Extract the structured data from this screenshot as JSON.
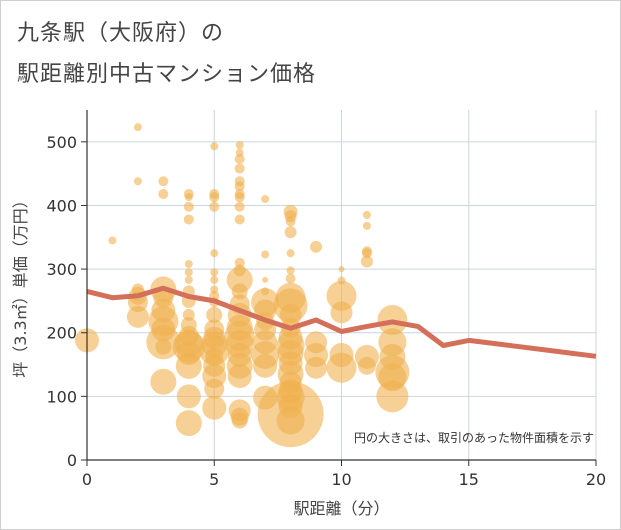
{
  "title_line1": "九条駅（大阪府）の",
  "title_line2": "駅距離別中古マンション価格",
  "chart_data": {
    "type": "scatter",
    "xlabel": "駅距離（分）",
    "ylabel": "坪（3.3㎡）単価（万円）",
    "xlim": [
      0,
      20
    ],
    "ylim": [
      0,
      550
    ],
    "xticks": [
      0,
      5,
      10,
      15,
      20
    ],
    "yticks": [
      0,
      100,
      200,
      300,
      400,
      500
    ],
    "note": "円の大きさは、取引のあった物件面積を示す",
    "grid": true,
    "colors": {
      "bubble": "#f0b14f",
      "line": "#d4705a",
      "grid": "#cad6e0"
    },
    "bubbles": [
      [
        0,
        188,
        12
      ],
      [
        1,
        345,
        4
      ],
      [
        2,
        523,
        4
      ],
      [
        2,
        438,
        4
      ],
      [
        2,
        268,
        6
      ],
      [
        2,
        258,
        9
      ],
      [
        2,
        248,
        10
      ],
      [
        2,
        225,
        11
      ],
      [
        3,
        438,
        5
      ],
      [
        3,
        418,
        5
      ],
      [
        3,
        268,
        13
      ],
      [
        3,
        255,
        10
      ],
      [
        3,
        235,
        12
      ],
      [
        3,
        218,
        15
      ],
      [
        3,
        205,
        12
      ],
      [
        3,
        185,
        17
      ],
      [
        3,
        178,
        8
      ],
      [
        3,
        123,
        13
      ],
      [
        4,
        418,
        5
      ],
      [
        4,
        413,
        4
      ],
      [
        4,
        398,
        5
      ],
      [
        4,
        378,
        5
      ],
      [
        4,
        308,
        4
      ],
      [
        4,
        295,
        4
      ],
      [
        4,
        283,
        4
      ],
      [
        4,
        265,
        6
      ],
      [
        4,
        250,
        7
      ],
      [
        4,
        228,
        6
      ],
      [
        4,
        212,
        8
      ],
      [
        4,
        195,
        10
      ],
      [
        4,
        183,
        14
      ],
      [
        4,
        178,
        16
      ],
      [
        4,
        168,
        12
      ],
      [
        4,
        148,
        13
      ],
      [
        4,
        100,
        12
      ],
      [
        4,
        58,
        13
      ],
      [
        5,
        493,
        4
      ],
      [
        5,
        418,
        5
      ],
      [
        5,
        413,
        5
      ],
      [
        5,
        398,
        5
      ],
      [
        5,
        325,
        4
      ],
      [
        5,
        295,
        4
      ],
      [
        5,
        283,
        4
      ],
      [
        5,
        268,
        4
      ],
      [
        5,
        258,
        5
      ],
      [
        5,
        248,
        5
      ],
      [
        5,
        228,
        8
      ],
      [
        5,
        205,
        10
      ],
      [
        5,
        192,
        11
      ],
      [
        5,
        182,
        13
      ],
      [
        5,
        172,
        15
      ],
      [
        5,
        162,
        9
      ],
      [
        5,
        148,
        11
      ],
      [
        5,
        132,
        12
      ],
      [
        5,
        112,
        10
      ],
      [
        5,
        82,
        12
      ],
      [
        6,
        495,
        4
      ],
      [
        6,
        483,
        4
      ],
      [
        6,
        473,
        5
      ],
      [
        6,
        458,
        5
      ],
      [
        6,
        438,
        5
      ],
      [
        6,
        430,
        5
      ],
      [
        6,
        418,
        5
      ],
      [
        6,
        413,
        5
      ],
      [
        6,
        398,
        5
      ],
      [
        6,
        378,
        5
      ],
      [
        6,
        310,
        5
      ],
      [
        6,
        298,
        6
      ],
      [
        6,
        283,
        13
      ],
      [
        6,
        265,
        8
      ],
      [
        6,
        245,
        10
      ],
      [
        6,
        228,
        12
      ],
      [
        6,
        208,
        13
      ],
      [
        6,
        195,
        15
      ],
      [
        6,
        182,
        14
      ],
      [
        6,
        165,
        12
      ],
      [
        6,
        148,
        13
      ],
      [
        6,
        132,
        12
      ],
      [
        6,
        78,
        11
      ],
      [
        6,
        68,
        9
      ],
      [
        6,
        62,
        8
      ],
      [
        7,
        410,
        4
      ],
      [
        7,
        323,
        4
      ],
      [
        7,
        283,
        3
      ],
      [
        7,
        265,
        4
      ],
      [
        7,
        248,
        14
      ],
      [
        7,
        235,
        11
      ],
      [
        7,
        218,
        9
      ],
      [
        7,
        205,
        11
      ],
      [
        7,
        185,
        12
      ],
      [
        7,
        165,
        14
      ],
      [
        7,
        148,
        12
      ],
      [
        7,
        98,
        12
      ],
      [
        8,
        390,
        7
      ],
      [
        8,
        383,
        6
      ],
      [
        8,
        375,
        5
      ],
      [
        8,
        358,
        6
      ],
      [
        8,
        325,
        4
      ],
      [
        8,
        298,
        4
      ],
      [
        8,
        285,
        5
      ],
      [
        8,
        255,
        15
      ],
      [
        8,
        243,
        17
      ],
      [
        8,
        228,
        11
      ],
      [
        8,
        208,
        10
      ],
      [
        8,
        192,
        12
      ],
      [
        8,
        180,
        14
      ],
      [
        8,
        168,
        13
      ],
      [
        8,
        152,
        12
      ],
      [
        8,
        135,
        13
      ],
      [
        8,
        122,
        11
      ],
      [
        8,
        108,
        12
      ],
      [
        8,
        98,
        14
      ],
      [
        8,
        85,
        12
      ],
      [
        8,
        72,
        33
      ],
      [
        8,
        62,
        14
      ],
      [
        9,
        335,
        6
      ],
      [
        9,
        185,
        11
      ],
      [
        9,
        165,
        12
      ],
      [
        9,
        145,
        11
      ],
      [
        10,
        300,
        3
      ],
      [
        10,
        282,
        4
      ],
      [
        10,
        258,
        15
      ],
      [
        10,
        232,
        11
      ],
      [
        10,
        165,
        12
      ],
      [
        10,
        145,
        15
      ],
      [
        11,
        385,
        4
      ],
      [
        11,
        368,
        4
      ],
      [
        11,
        328,
        5
      ],
      [
        11,
        325,
        5
      ],
      [
        11,
        312,
        6
      ],
      [
        11,
        162,
        12
      ],
      [
        11,
        148,
        9
      ],
      [
        12,
        220,
        15
      ],
      [
        12,
        185,
        14
      ],
      [
        12,
        162,
        13
      ],
      [
        12,
        138,
        17
      ],
      [
        12,
        130,
        14
      ],
      [
        12,
        100,
        16
      ]
    ],
    "line": {
      "x": [
        0,
        1,
        2,
        3,
        4,
        5,
        6,
        7,
        8,
        9,
        10,
        11,
        12,
        13,
        14,
        15,
        16,
        17,
        18,
        19,
        20
      ],
      "y": [
        265,
        255,
        258,
        270,
        257,
        250,
        235,
        220,
        207,
        220,
        202,
        210,
        217,
        210,
        180,
        188,
        183,
        178,
        173,
        168,
        163
      ]
    }
  }
}
